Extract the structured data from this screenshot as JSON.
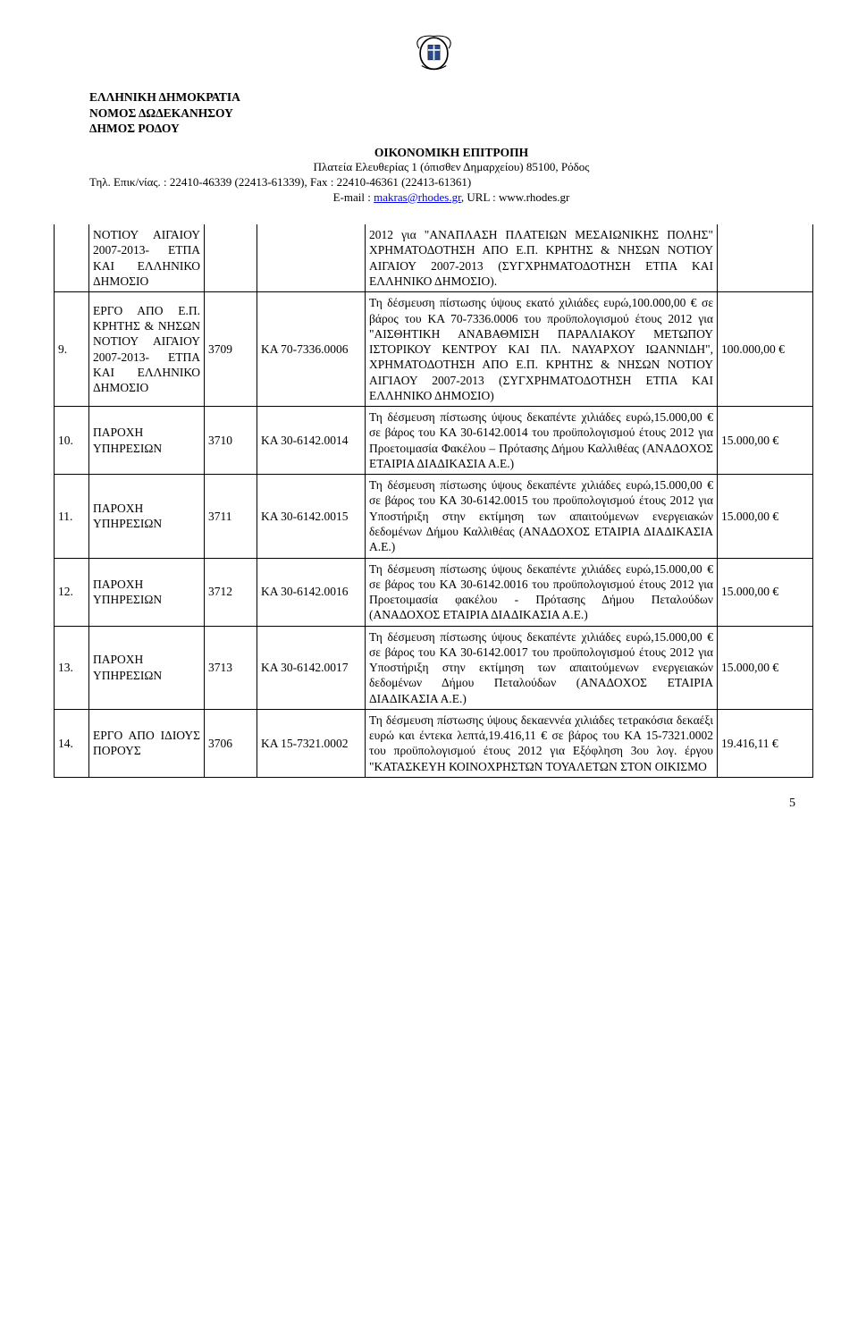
{
  "header": {
    "org_lines": [
      "ΕΛΛΗΝΙΚΗ ΔΗΜΟΚΡΑΤΙΑ",
      "ΝΟΜΟΣ ΔΩΔΕΚΑΝΗΣΟΥ",
      "ΔΗΜΟΣ ΡΟΔΟΥ"
    ],
    "committee": "ΟΙΚΟΝΟΜΙΚΗ ΕΠΙΤΡΟΠΗ",
    "address": "Πλατεία Ελευθερίας 1 (όπισθεν Δημαρχείου) 85100, Ρόδος",
    "phone_line": "Τηλ. Επικ/νίας. : 22410-46339 (22413-61339), Fax : 22410-46361 (22413-61361)",
    "email_prefix": "E-mail : ",
    "email": "makras@rhodes.gr",
    "url_prefix": ",  URL : ",
    "url": "www.rhodes.gr"
  },
  "rows": [
    {
      "num": "",
      "cat": "ΝΟΤΙΟΥ ΑΙΓΑΙΟΥ 2007-2013- ΕΤΠΑ ΚΑΙ ΕΛΛΗΝΙΚΟ ΔΗΜΟΣΙΟ",
      "code1": "",
      "code2": "",
      "desc": "2012 για \"ΑΝΑΠΛΑΣΗ ΠΛΑΤΕΙΩΝ ΜΕΣΑΙΩΝΙΚΗΣ ΠΟΛΗΣ\" ΧΡΗΜΑΤΟΔΟΤΗΣΗ ΑΠΟ Ε.Π. ΚΡΗΤΗΣ & ΝΗΣΩΝ ΝΟΤΙΟΥ ΑΙΓΑΙΟΥ 2007-2013 (ΣΥΓΧΡΗΜΑΤΟΔΟΤΗΣΗ ΕΤΠΑ ΚΑΙ ΕΛΛΗΝΙΚΟ ΔΗΜΟΣΙΟ).",
      "amount": ""
    },
    {
      "num": "9.",
      "cat": "ΕΡΓΟ ΑΠΟ Ε.Π. ΚΡΗΤΗΣ & ΝΗΣΩΝ ΝΟΤΙΟΥ ΑΙΓΑΙΟΥ 2007-2013- ΕΤΠΑ ΚΑΙ ΕΛΛΗΝΙΚΟ ΔΗΜΟΣΙΟ",
      "code1": "3709",
      "code2": "ΚΑ 70-7336.0006",
      "desc": "Τη δέσμευση πίστωσης ύψους εκατό χιλιάδες ευρώ,100.000,00 € σε βάρος του ΚΑ 70-7336.0006 του προϋπολογισμού έτους 2012 για \"ΑΙΣΘΗΤΙΚΗ ΑΝΑΒΑΘΜΙΣΗ ΠΑΡΑΛΙΑΚΟΥ ΜΕΤΩΠΟΥ ΙΣΤΟΡΙΚΟΥ ΚΕΝΤΡΟΥ ΚΑΙ ΠΛ. ΝΑΥΑΡΧΟΥ ΙΩΑΝΝΙΔΗ\", ΧΡΗΜΑΤΟΔΟΤΗΣΗ ΑΠΟ Ε.Π. ΚΡΗΤΗΣ & ΝΗΣΩΝ ΝΟΤΙΟΥ ΑΙΓΙΑΟΥ 2007-2013 (ΣΥΓΧΡΗΜΑΤΟΔΟΤΗΣΗ ΕΤΠΑ ΚΑΙ ΕΛΛΗΝΙΚΟ ΔΗΜΟΣΙΟ)",
      "amount": "100.000,00 €"
    },
    {
      "num": "10.",
      "cat": "ΠΑΡΟΧΗ ΥΠΗΡΕΣΙΩΝ",
      "code1": "3710",
      "code2": "ΚΑ 30-6142.0014",
      "desc": "Τη δέσμευση πίστωσης ύψους δεκαπέντε χιλιάδες ευρώ,15.000,00 € σε βάρος του ΚΑ 30-6142.0014 του προϋπολογισμού έτους 2012 για Προετοιμασία Φακέλου – Πρότασης Δήμου Καλλιθέας (ΑΝΑΔΟΧΟΣ ΕΤΑΙΡΙΑ ΔΙΑΔΙΚΑΣΙΑ Α.Ε.)",
      "amount": "15.000,00 €"
    },
    {
      "num": "11.",
      "cat": "ΠΑΡΟΧΗ ΥΠΗΡΕΣΙΩΝ",
      "code1": "3711",
      "code2": "ΚΑ 30-6142.0015",
      "desc": "Τη δέσμευση πίστωσης ύψους δεκαπέντε χιλιάδες ευρώ,15.000,00 € σε βάρος του ΚΑ 30-6142.0015 του προϋπολογισμού έτους 2012 για Υποστήριξη στην εκτίμηση των απαιτούμενων ενεργειακών δεδομένων Δήμου Καλλιθέας (ΑΝΑΔΟΧΟΣ ΕΤΑΙΡΙΑ ΔΙΑΔΙΚΑΣΙΑ Α.Ε.)",
      "amount": "15.000,00 €"
    },
    {
      "num": "12.",
      "cat": "ΠΑΡΟΧΗ ΥΠΗΡΕΣΙΩΝ",
      "code1": "3712",
      "code2": "ΚΑ 30-6142.0016",
      "desc": "Τη δέσμευση πίστωσης ύψους δεκαπέντε χιλιάδες ευρώ,15.000,00 € σε βάρος του ΚΑ 30-6142.0016 του προϋπολογισμού έτους 2012 για Προετοιμασία φακέλου - Πρότασης Δήμου Πεταλούδων (ΑΝΑΔΟΧΟΣ ΕΤΑΙΡΙΑ ΔΙΑΔΙΚΑΣΙΑ Α.Ε.)",
      "amount": "15.000,00 €"
    },
    {
      "num": "13.",
      "cat": "ΠΑΡΟΧΗ ΥΠΗΡΕΣΙΩΝ",
      "code1": "3713",
      "code2": "ΚΑ 30-6142.0017",
      "desc": "Τη δέσμευση πίστωσης ύψους δεκαπέντε χιλιάδες ευρώ,15.000,00 € σε βάρος του ΚΑ 30-6142.0017 του προϋπολογισμού έτους 2012 για Υποστήριξη στην εκτίμηση των απαιτούμενων ενεργειακών δεδομένων Δήμου Πεταλούδων (ΑΝΑΔΟΧΟΣ ΕΤΑΙΡΙΑ ΔΙΑΔΙΚΑΣΙΑ Α.Ε.)",
      "amount": "15.000,00 €"
    },
    {
      "num": "14.",
      "cat": "ΕΡΓΟ ΑΠΟ ΙΔΙΟΥΣ ΠΟΡΟΥΣ",
      "code1": "3706",
      "code2": "ΚΑ 15-7321.0002",
      "desc": "Τη δέσμευση πίστωσης ύψους δεκαεννέα χιλιάδες τετρακόσια δεκαέξι ευρώ και έντεκα λεπτά,19.416,11 € σε βάρος του ΚΑ 15-7321.0002 του προϋπολογισμού έτους 2012 για Εξόφληση 3ου λογ. έργου \"ΚΑΤΑΣΚΕΥΗ ΚΟΙΝΟΧΡΗΣΤΩΝ ΤΟΥΑΛΕΤΩΝ ΣΤΟΝ ΟΙΚΙΣΜΟ",
      "amount": "19.416,11 €"
    }
  ],
  "page_number": "5",
  "colors": {
    "text": "#000000",
    "background": "#ffffff",
    "link": "#0000ee",
    "border": "#000000"
  }
}
